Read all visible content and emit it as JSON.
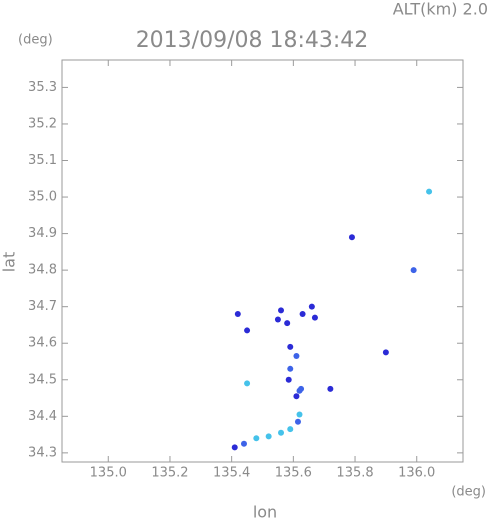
{
  "chart_data": {
    "type": "scatter",
    "title": "2013/09/08 18:43:42",
    "subtitle": "ALT(km) 2.0",
    "y_unit": "(deg)",
    "x_unit": "(deg)",
    "x_label": "lon",
    "y_label": "lat",
    "xlim": [
      134.85,
      136.15
    ],
    "ylim": [
      34.275,
      35.375
    ],
    "xticks": [
      {
        "value": 135,
        "label": "135.0"
      },
      135.2,
      135.4,
      135.6,
      135.8,
      {
        "value": 136,
        "label": "136.0"
      }
    ],
    "yticks": [
      34.3,
      34.4,
      34.5,
      34.6,
      34.7,
      34.8,
      34.9,
      {
        "value": 35,
        "label": "35.0"
      },
      35.1,
      35.2,
      35.3
    ],
    "series": [
      {
        "color": "#2b2bd6",
        "x": [
          135.79,
          135.42,
          135.45,
          135.56,
          135.55,
          135.58,
          135.63,
          135.66,
          135.67,
          135.9,
          135.59,
          135.585,
          135.61,
          135.72,
          135.41
        ],
        "values": [
          34.89,
          34.68,
          34.635,
          34.69,
          34.665,
          34.655,
          34.68,
          34.7,
          34.67,
          34.575,
          34.59,
          34.5,
          34.455,
          34.475,
          34.315
        ]
      },
      {
        "color": "#3d63e8",
        "x": [
          135.99,
          135.61,
          135.59,
          135.62,
          135.625,
          135.615,
          135.44
        ],
        "values": [
          34.8,
          34.565,
          34.53,
          34.47,
          34.475,
          34.385,
          34.325
        ]
      },
      {
        "color": "#45c2ea",
        "x": [
          136.04,
          135.45,
          135.62,
          135.48,
          135.52,
          135.56,
          135.59
        ],
        "values": [
          35.015,
          34.49,
          34.405,
          34.34,
          34.345,
          34.355,
          34.365
        ]
      }
    ]
  }
}
